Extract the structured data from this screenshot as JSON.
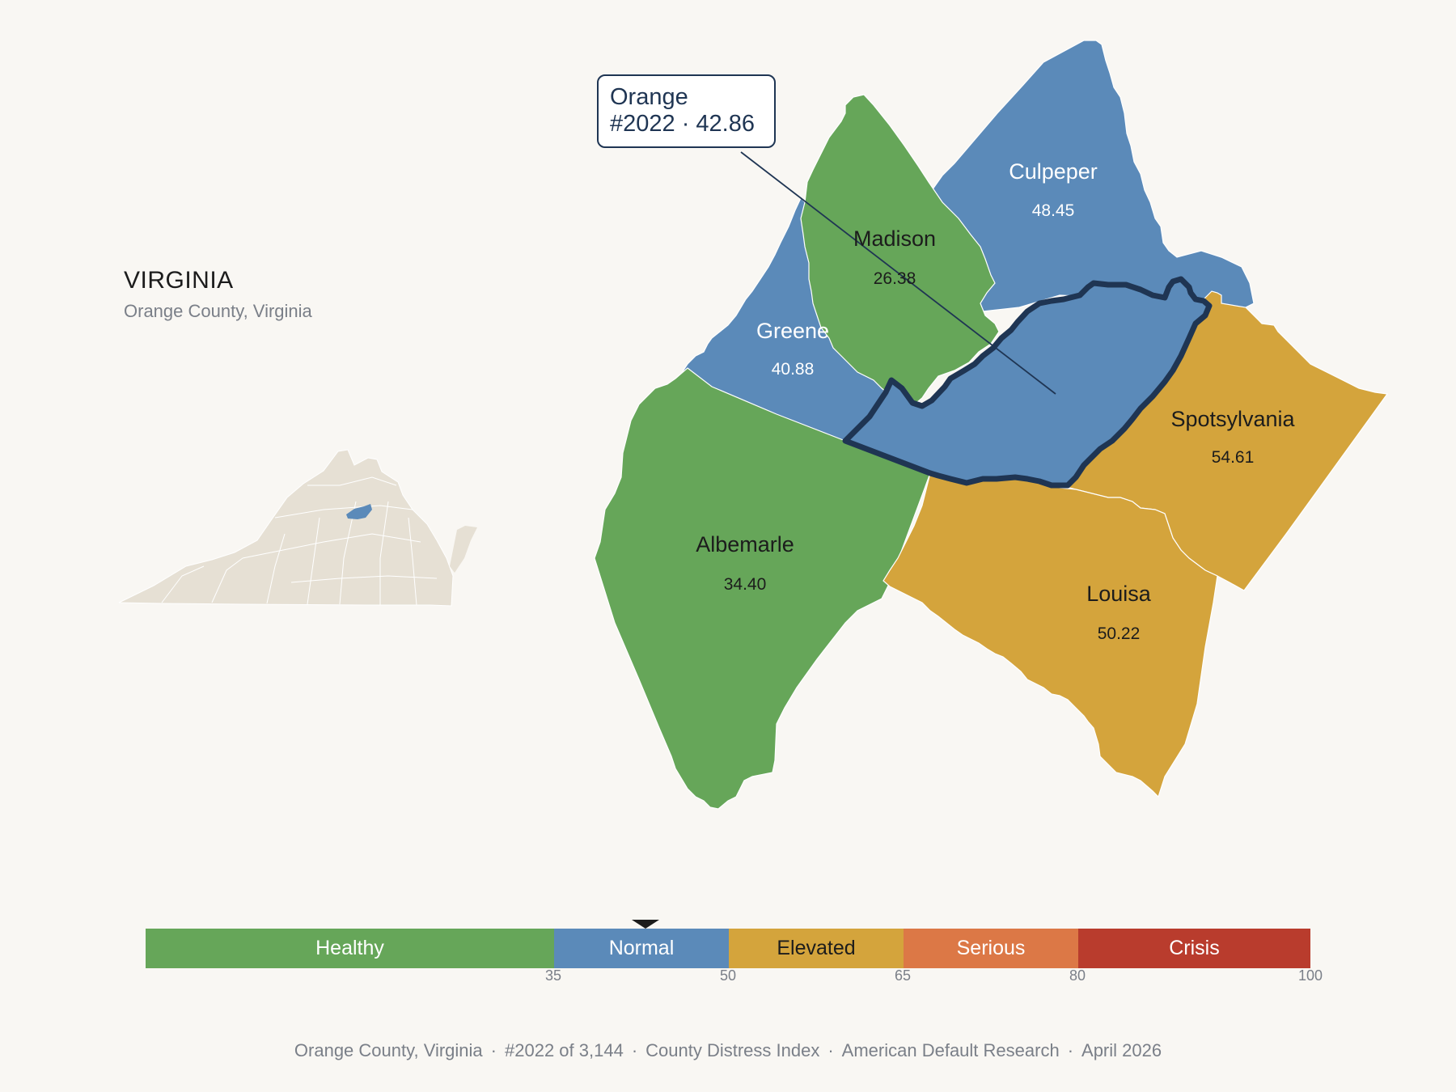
{
  "state": {
    "title": "VIRGINIA",
    "subtitle": "Orange County, Virginia"
  },
  "callout": {
    "name": "Orange",
    "rank_value": "#2022 · 42.86"
  },
  "counties": [
    {
      "name": "Madison",
      "value": "26.38",
      "category": "Healthy"
    },
    {
      "name": "Culpeper",
      "value": "48.45",
      "category": "Normal"
    },
    {
      "name": "Greene",
      "value": "40.88",
      "category": "Normal"
    },
    {
      "name": "Spotsylvania",
      "value": "54.61",
      "category": "Elevated"
    },
    {
      "name": "Albemarle",
      "value": "34.40",
      "category": "Healthy"
    },
    {
      "name": "Louisa",
      "value": "50.22",
      "category": "Elevated"
    },
    {
      "name": "Orange",
      "value": "42.86",
      "category": "Normal",
      "highlighted": true
    }
  ],
  "legend": {
    "segments": [
      {
        "label": "Healthy",
        "from": 0,
        "to": 35,
        "color": "#66a659",
        "text_color": "#ffffff"
      },
      {
        "label": "Normal",
        "from": 35,
        "to": 50,
        "color": "#5b8ab9",
        "text_color": "#ffffff"
      },
      {
        "label": "Elevated",
        "from": 50,
        "to": 65,
        "color": "#d4a43c",
        "text_color": "#1c1c1c"
      },
      {
        "label": "Serious",
        "from": 65,
        "to": 80,
        "color": "#dc7846",
        "text_color": "#ffffff"
      },
      {
        "label": "Crisis",
        "from": 80,
        "to": 100,
        "color": "#b93c2d",
        "text_color": "#ffffff"
      }
    ],
    "ticks": [
      "35",
      "50",
      "65",
      "80",
      "100"
    ],
    "marker_value": 42.86
  },
  "colors": {
    "background": "#f9f7f3",
    "healthy": "#66a659",
    "normal": "#5b8ab9",
    "elevated": "#d4a43c",
    "highlight_outline": "#1f3553",
    "inset_state": "#e6e0d4"
  },
  "footer": {
    "county": "Orange County, Virginia",
    "rank": "#2022 of 3,144",
    "index": "County Distress Index",
    "source": "American Default Research",
    "date": "April 2026"
  }
}
